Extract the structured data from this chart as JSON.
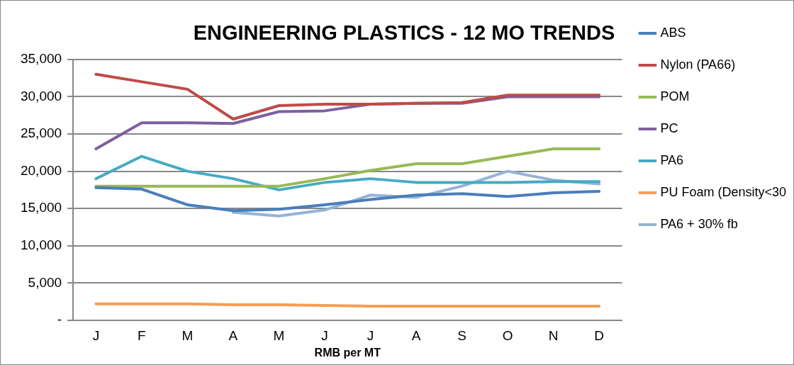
{
  "chart_data": {
    "type": "line",
    "title": "ENGINEERING PLASTICS - 12 MO TRENDS",
    "xlabel": "RMB per MT",
    "categories": [
      "J",
      "F",
      "M",
      "A",
      "M",
      "J",
      "J",
      "A",
      "S",
      "O",
      "N",
      "D"
    ],
    "series": [
      {
        "name": "ABS",
        "color": "#4a7ebb",
        "values": [
          17800,
          17600,
          15500,
          14700,
          14900,
          15500,
          16200,
          16800,
          17000,
          16600,
          17100,
          17300
        ]
      },
      {
        "name": "Nylon (PA66)",
        "color": "#be4b48",
        "values": [
          33000,
          32000,
          31000,
          27000,
          28800,
          29000,
          29000,
          29100,
          29200,
          30200,
          30200,
          30200
        ]
      },
      {
        "name": "POM",
        "color": "#98b954",
        "values": [
          18000,
          18000,
          18000,
          18000,
          18000,
          19000,
          20100,
          21000,
          21000,
          22000,
          23000,
          23000
        ]
      },
      {
        "name": "PC",
        "color": "#7d60a0",
        "values": [
          23000,
          26500,
          26500,
          26400,
          28000,
          28100,
          29000,
          29100,
          29100,
          30000,
          30000,
          30000
        ]
      },
      {
        "name": "PA6",
        "color": "#46aac5",
        "values": [
          19000,
          22000,
          20000,
          19000,
          17500,
          18500,
          19000,
          18500,
          18500,
          18500,
          18600,
          18600
        ]
      },
      {
        "name": "PU Foam (Density<30",
        "color": "#f59d56",
        "values": [
          2200,
          2200,
          2200,
          2100,
          2100,
          2000,
          1900,
          1900,
          1900,
          1900,
          1900,
          1900
        ]
      },
      {
        "name": "PA6 + 30% fb",
        "color": "#95b3d7",
        "values": [
          null,
          null,
          null,
          14500,
          14000,
          14800,
          16800,
          16500,
          18000,
          20000,
          18800,
          18300
        ]
      }
    ],
    "ylim": [
      0,
      35000
    ],
    "yticks": [
      {
        "value": 0,
        "label": "-"
      },
      {
        "value": 5000,
        "label": "5,000"
      },
      {
        "value": 10000,
        "label": "10,000"
      },
      {
        "value": 15000,
        "label": "15,000"
      },
      {
        "value": 20000,
        "label": "20,000"
      },
      {
        "value": 25000,
        "label": "25,000"
      },
      {
        "value": 30000,
        "label": "30,000"
      },
      {
        "value": 35000,
        "label": "35,000"
      }
    ],
    "grid": "y",
    "legend": "right",
    "marker": "none",
    "line_style": "solid"
  }
}
